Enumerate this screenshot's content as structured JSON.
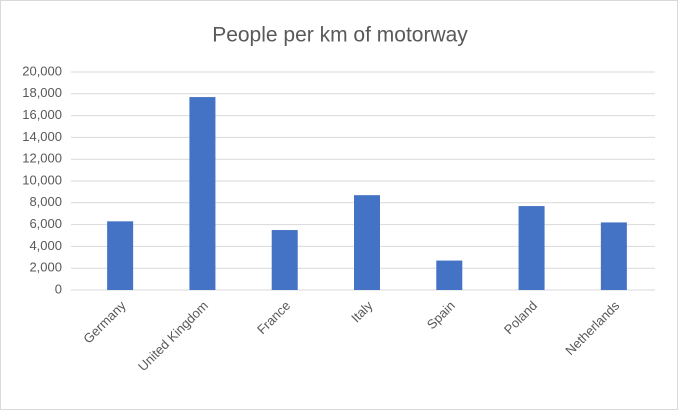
{
  "chart_data": {
    "type": "bar",
    "title": "People per km of motorway",
    "categories": [
      "Germany",
      "United Kingdom",
      "France",
      "Italy",
      "Spain",
      "Poland",
      "Netherlands"
    ],
    "values": [
      6300,
      17700,
      5500,
      8700,
      2700,
      7700,
      6200
    ],
    "color": "#4472c4",
    "ylim": [
      0,
      20000
    ],
    "yticks": [
      0,
      {
        "value": 2000,
        "label": "2,000"
      },
      {
        "value": 4000,
        "label": "4,000"
      },
      {
        "value": 6000,
        "label": "6,000"
      },
      {
        "value": 8000,
        "label": "8,000"
      },
      {
        "value": 10000,
        "label": "10,000"
      },
      {
        "value": 12000,
        "label": "12,000"
      },
      {
        "value": 14000,
        "label": "14,000"
      },
      {
        "value": 16000,
        "label": "16,000"
      },
      {
        "value": 18000,
        "label": "18,000"
      },
      {
        "value": 20000,
        "label": "20,000"
      }
    ],
    "grid": true
  }
}
